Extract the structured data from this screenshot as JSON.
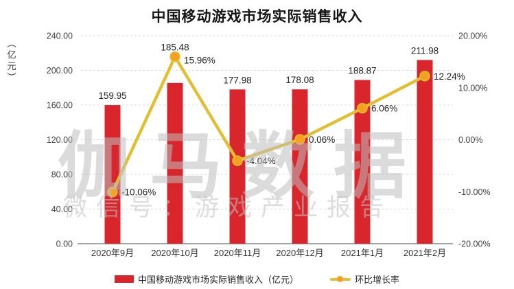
{
  "title": "中国移动游戏市场实际销售收入",
  "watermark": {
    "main": "伽马数据",
    "sub": "微信号：游戏产业报告"
  },
  "left_axis": {
    "unit": "（亿元）",
    "ticks": [
      "240.00",
      "200.00",
      "160.00",
      "120.00",
      "80.00",
      "40.00",
      "0.00"
    ]
  },
  "right_axis": {
    "ticks": [
      "20.00%",
      "10.00%",
      "0.00%",
      "-10.00%",
      "-20.00%"
    ]
  },
  "legend": {
    "items": [
      {
        "label": "中国移动游戏市场实际销售收入（亿元）",
        "color": "#D8262C",
        "type": "bar"
      },
      {
        "label": "环比增长率",
        "color": "#E2BE33",
        "marker_color": "#F79F21",
        "type": "line"
      }
    ]
  },
  "colors": {
    "bar": "#D8262C",
    "line": "#E2BE33",
    "marker": "#F79F21",
    "gridline": "#D8D8D8",
    "axis_line": "#6E6E6E"
  },
  "chart_data": {
    "type": "bar+line combo",
    "title": "中国移动游戏市场实际销售收入",
    "categories": [
      "2020年9月",
      "2020年10月",
      "2020年11月",
      "2020年12月",
      "2021年1月",
      "2021年2月"
    ],
    "series": [
      {
        "name": "中国移动游戏市场实际销售收入（亿元）",
        "type": "bar",
        "axis": "left",
        "color": "#D8262C",
        "values": [
          159.95,
          185.48,
          177.98,
          178.08,
          188.87,
          211.98
        ],
        "labels": [
          "159.95",
          "185.48",
          "177.98",
          "178.08",
          "188.87",
          "211.98"
        ]
      },
      {
        "name": "环比增长率",
        "type": "line",
        "axis": "right",
        "color": "#E2BE33",
        "marker_color": "#F79F21",
        "values": [
          -10.06,
          15.96,
          -4.04,
          0.06,
          6.06,
          12.24
        ],
        "labels": [
          "-10.06%",
          "15.96%",
          "-4.04%",
          "0.06%",
          "6.06%",
          "12.24%"
        ]
      }
    ],
    "left_ylim": [
      0,
      240
    ],
    "right_ylim": [
      -20,
      20
    ],
    "grid": "horizontal-dashed",
    "legend_position": "bottom"
  }
}
